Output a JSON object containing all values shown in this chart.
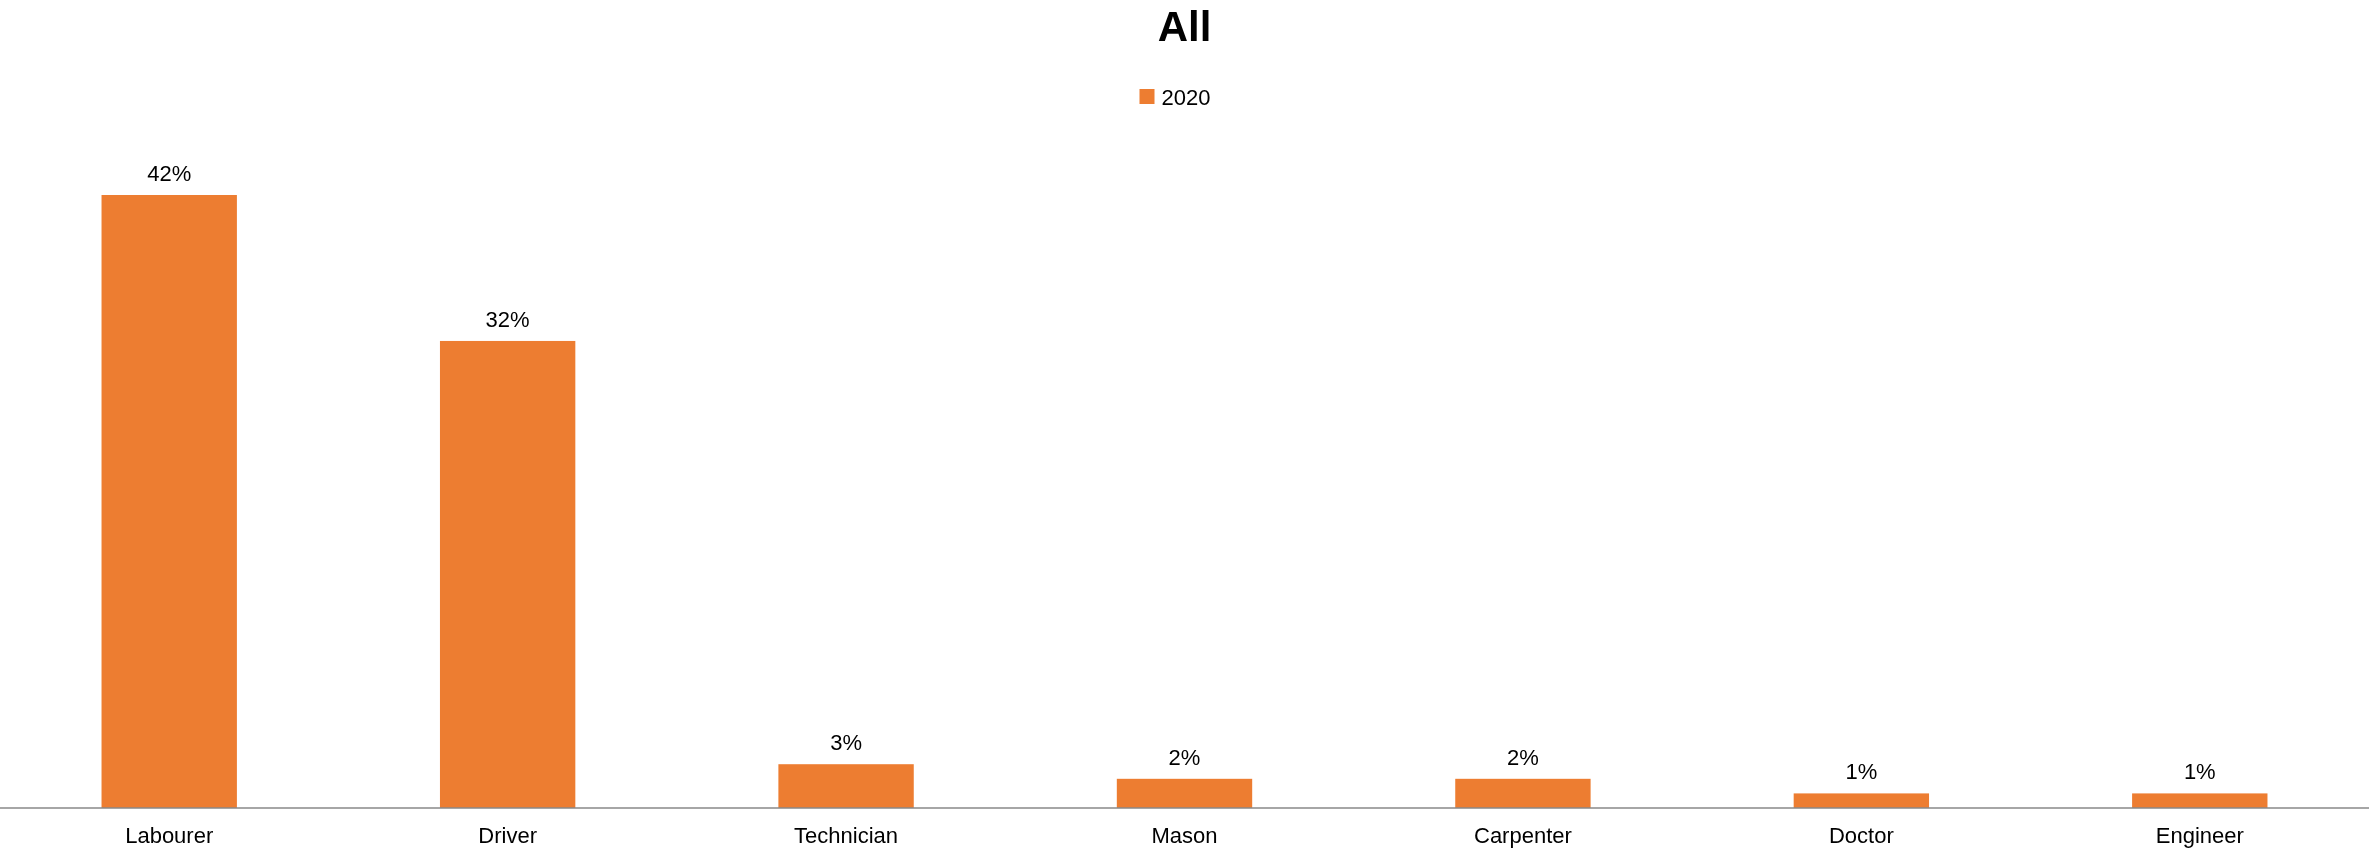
{
  "chart_data": {
    "type": "bar",
    "title": "All",
    "categories": [
      "Labourer",
      "Driver",
      "Technician",
      "Mason",
      "Carpenter",
      "Doctor",
      "Engineer"
    ],
    "series": [
      {
        "name": "2020",
        "color": "#ed7d31",
        "values": [
          42,
          32,
          3,
          2,
          2,
          1,
          1
        ],
        "value_labels": [
          "42%",
          "32%",
          "3%",
          "2%",
          "2%",
          "1%",
          "1%"
        ]
      }
    ],
    "legend": "top"
  }
}
